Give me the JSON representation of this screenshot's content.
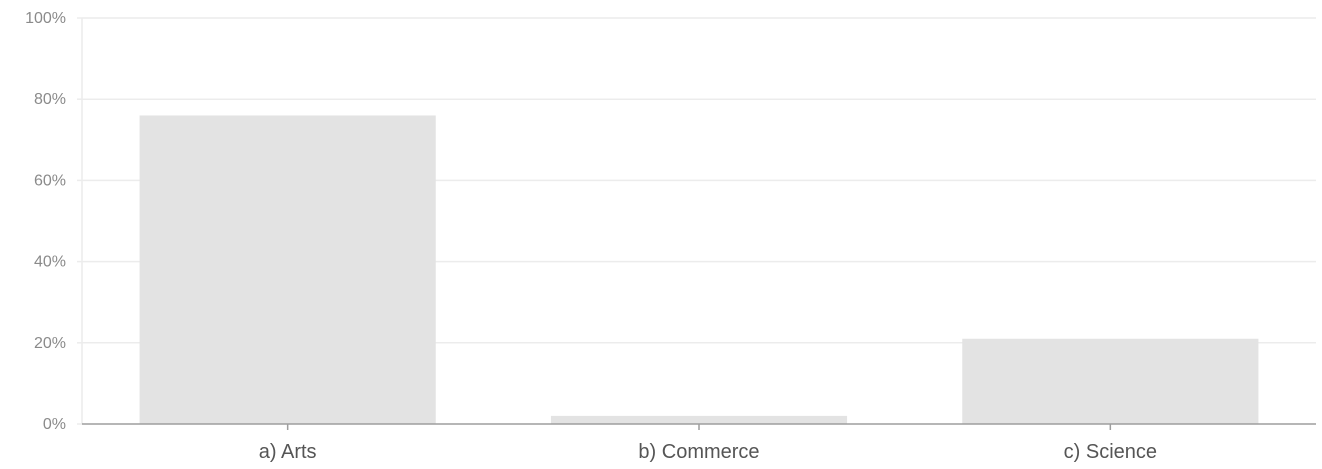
{
  "chart_data": {
    "type": "bar",
    "categories": [
      "a) Arts",
      "b) Commerce",
      "c) Science"
    ],
    "values": [
      76,
      2,
      21
    ],
    "ylim": [
      0,
      100
    ],
    "yticks": [
      0,
      20,
      40,
      60,
      80,
      100
    ],
    "ytick_labels": [
      "0%",
      "20%",
      "40%",
      "60%",
      "80%",
      "100%"
    ],
    "grid": true,
    "legend": "none"
  },
  "colors": {
    "bar": "#e3e3e3",
    "grid": "#ececec",
    "axis": "#9e9e9e",
    "ytick_text": "#8a8a8a",
    "xtick_text": "#555555"
  }
}
